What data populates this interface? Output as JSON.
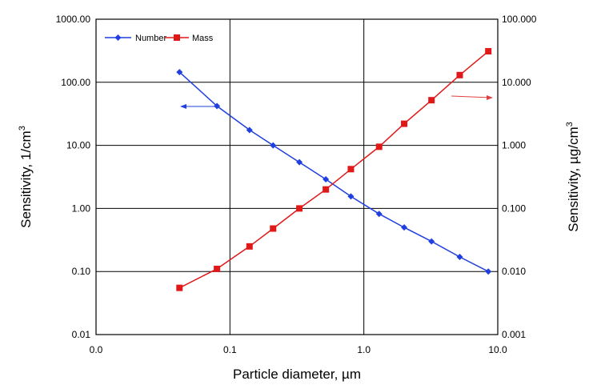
{
  "chart_data": {
    "type": "line",
    "x_scale": "log",
    "x_ticks": [
      "0.0",
      "0.1",
      "1.0",
      "10.0"
    ],
    "y_left_scale": "log",
    "y_left_ticks": [
      "0.01",
      "0.10",
      "1.00",
      "10.00",
      "100.00",
      "1000.00"
    ],
    "y_left_range": [
      0.01,
      1000
    ],
    "y_right_scale": "log",
    "y_right_ticks": [
      "0.001",
      "0.010",
      "0.100",
      "1.000",
      "10.000",
      "100.000"
    ],
    "y_right_range": [
      0.001,
      100
    ],
    "xlabel": "Particle diameter, µm",
    "ylabel_left": "Sensitivity, 1/cm",
    "ylabel_left_sup": "3",
    "ylabel_right": "Sensitivity, µg/cm",
    "ylabel_right_sup": "3",
    "grid": true,
    "legend_position": "top-left",
    "series": [
      {
        "name": "Number",
        "axis": "left",
        "color": "#1f3fe0",
        "marker": "diamond",
        "x": [
          0.042,
          0.08,
          0.14,
          0.21,
          0.33,
          0.52,
          0.8,
          1.3,
          2.0,
          3.2,
          5.2,
          8.5
        ],
        "y": [
          145,
          42,
          17.5,
          10,
          5.4,
          2.9,
          1.55,
          0.82,
          0.5,
          0.3,
          0.17,
          0.1
        ]
      },
      {
        "name": "Mass",
        "axis": "right",
        "color": "#e01818",
        "marker": "square",
        "x": [
          0.042,
          0.08,
          0.14,
          0.21,
          0.33,
          0.52,
          0.8,
          1.3,
          2.0,
          3.2,
          5.2,
          8.5
        ],
        "y": [
          0.0055,
          0.011,
          0.025,
          0.048,
          0.1,
          0.2,
          0.42,
          0.95,
          2.2,
          5.2,
          13,
          31
        ]
      }
    ]
  }
}
